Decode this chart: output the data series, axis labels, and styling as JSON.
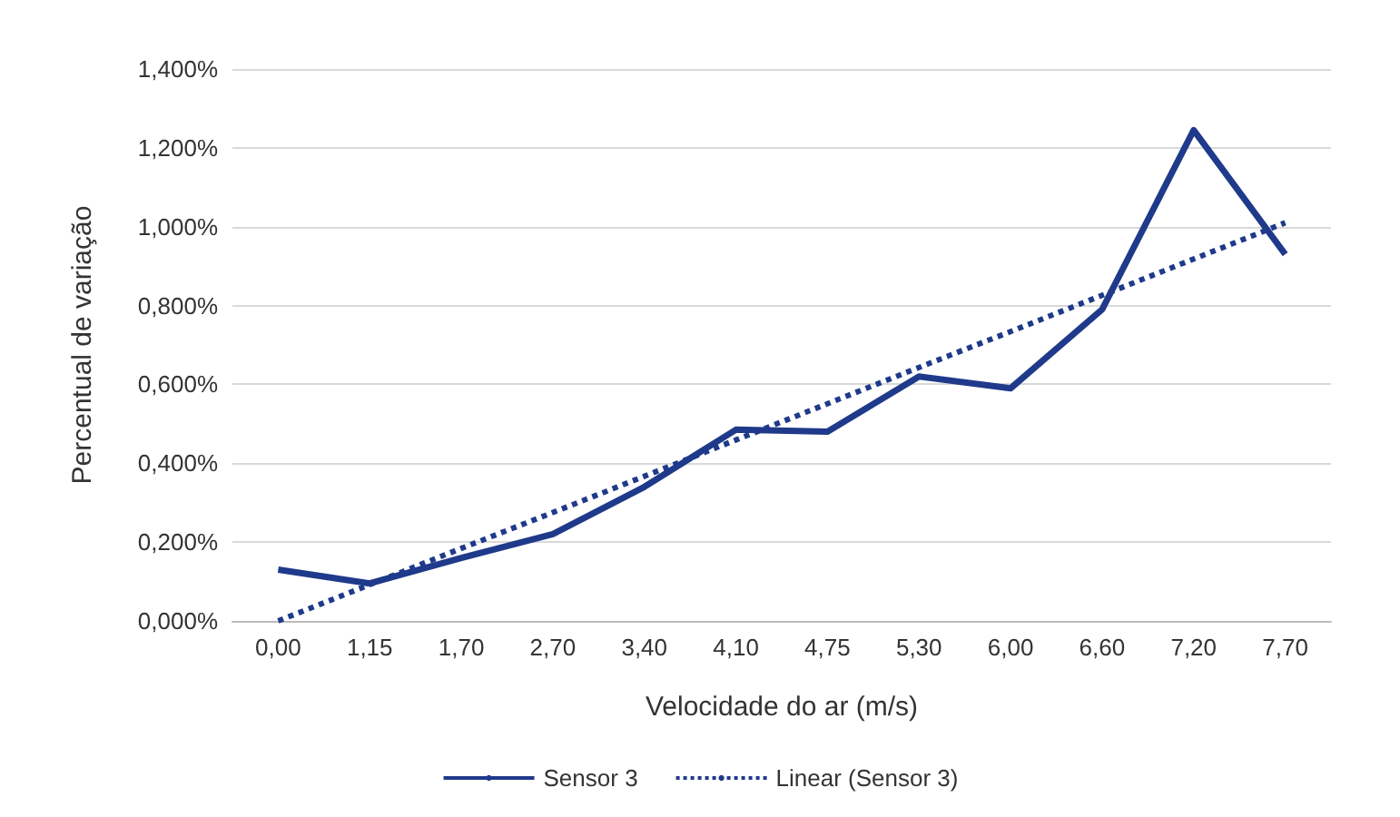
{
  "chart_data": {
    "type": "line",
    "xlabel": "Velocidade do ar (m/s)",
    "ylabel": "Percentual de variação",
    "categories": [
      "0,00",
      "1,15",
      "1,70",
      "2,70",
      "3,40",
      "4,10",
      "4,75",
      "5,30",
      "6,00",
      "6,60",
      "7,20",
      "7,70"
    ],
    "series": [
      {
        "name": "Sensor 3",
        "color": "#1f3a8a",
        "line_style": "solid",
        "values": [
          0.13,
          0.095,
          0.16,
          0.22,
          0.34,
          0.485,
          0.48,
          0.62,
          0.59,
          0.79,
          1.245,
          0.93
        ]
      },
      {
        "name": "Linear (Sensor 3)",
        "color": "#1f3a8a",
        "line_style": "dotted",
        "values": [
          0,
          0.092,
          0.184,
          0.275,
          0.367,
          0.459,
          0.551,
          0.643,
          0.734,
          0.826,
          0.918,
          1.01
        ]
      }
    ],
    "ylim": [
      0,
      1.4
    ],
    "yticks": [
      {
        "value": 0,
        "label": "0,000%"
      },
      {
        "value": 0.2,
        "label": "0,200%"
      },
      {
        "value": 0.4,
        "label": "0,400%"
      },
      {
        "value": 0.6,
        "label": "0,600%"
      },
      {
        "value": 0.8,
        "label": "0,800%"
      },
      {
        "value": 1.0,
        "label": "1,000%"
      },
      {
        "value": 1.2,
        "label": "1,200%"
      },
      {
        "value": 1.4,
        "label": "1,400%"
      }
    ],
    "grid": "y",
    "legend": "bottom",
    "marker": "none"
  }
}
